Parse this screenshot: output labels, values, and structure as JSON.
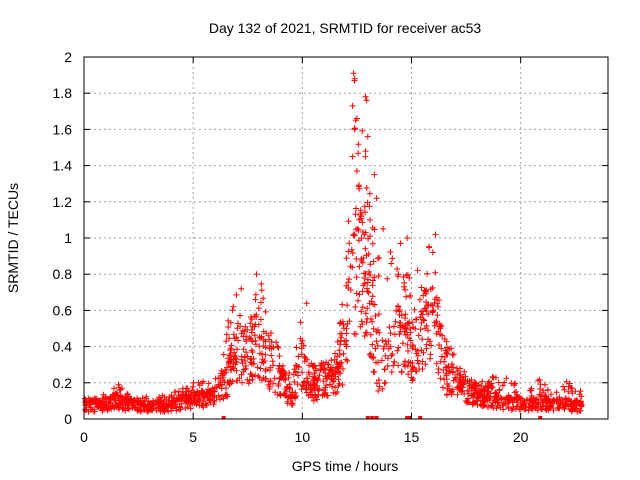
{
  "chart_data": {
    "type": "scatter",
    "title": "Day 132 of 2021, SRMTID for receiver ac53",
    "xlabel": "GPS time / hours",
    "ylabel": "SRMTID / TECUs",
    "xlim": [
      0,
      24
    ],
    "ylim": [
      0,
      2
    ],
    "xticks": [
      0,
      5,
      10,
      15,
      20
    ],
    "yticks": [
      0,
      0.2,
      0.4,
      0.6,
      0.8,
      1,
      1.2,
      1.4,
      1.6,
      1.8,
      2
    ],
    "grid": true,
    "marker": "+",
    "color": "#ff0000",
    "x_range_hours": [
      0,
      22.8
    ],
    "envelope": {
      "x": [
        0,
        1,
        1.5,
        2,
        3,
        4,
        5,
        6,
        6.5,
        7,
        7.5,
        8,
        8.5,
        9,
        9.5,
        10,
        10.5,
        11,
        11.5,
        12,
        12.3,
        12.6,
        13,
        13.5,
        14,
        14.5,
        15,
        15.5,
        16,
        16.5,
        17,
        18,
        19,
        20,
        21,
        22,
        22.8
      ],
      "median": [
        0.07,
        0.08,
        0.1,
        0.08,
        0.07,
        0.07,
        0.11,
        0.12,
        0.2,
        0.38,
        0.32,
        0.42,
        0.3,
        0.2,
        0.12,
        0.3,
        0.18,
        0.22,
        0.2,
        0.4,
        0.8,
        0.9,
        0.7,
        0.25,
        0.4,
        0.45,
        0.35,
        0.5,
        0.55,
        0.25,
        0.2,
        0.12,
        0.1,
        0.08,
        0.09,
        0.08,
        0.07
      ],
      "max": [
        0.12,
        0.14,
        0.2,
        0.14,
        0.12,
        0.14,
        0.2,
        0.22,
        0.5,
        0.72,
        0.55,
        0.8,
        0.6,
        0.35,
        0.25,
        0.64,
        0.3,
        0.35,
        0.38,
        0.9,
        1.92,
        1.78,
        1.4,
        0.95,
        1.0,
        0.85,
        0.97,
        0.92,
        1.02,
        0.5,
        0.35,
        0.2,
        0.25,
        0.2,
        0.22,
        0.22,
        0.15
      ]
    },
    "spikes": [
      {
        "x": 12.35,
        "y": 1.91
      },
      {
        "x": 12.4,
        "y": 1.88
      },
      {
        "x": 12.9,
        "y": 1.78
      },
      {
        "x": 12.95,
        "y": 1.76
      },
      {
        "x": 12.3,
        "y": 1.73
      },
      {
        "x": 12.5,
        "y": 1.66
      },
      {
        "x": 12.4,
        "y": 1.6
      },
      {
        "x": 13.0,
        "y": 1.56
      },
      {
        "x": 12.9,
        "y": 1.48
      },
      {
        "x": 12.3,
        "y": 1.45
      },
      {
        "x": 12.5,
        "y": 1.37
      },
      {
        "x": 13.3,
        "y": 1.35
      },
      {
        "x": 13.4,
        "y": 1.22
      },
      {
        "x": 12.7,
        "y": 1.12
      },
      {
        "x": 13.1,
        "y": 1.1
      },
      {
        "x": 13.7,
        "y": 1.05
      },
      {
        "x": 14.8,
        "y": 1.0
      },
      {
        "x": 14.5,
        "y": 0.97
      },
      {
        "x": 16.1,
        "y": 1.02
      },
      {
        "x": 7.9,
        "y": 0.8
      },
      {
        "x": 7.2,
        "y": 0.72
      },
      {
        "x": 10.2,
        "y": 0.64
      }
    ],
    "zero_markers_x": [
      6.4,
      13.0,
      13.2,
      13.4,
      14.8,
      14.9,
      15.4,
      20.9
    ]
  }
}
